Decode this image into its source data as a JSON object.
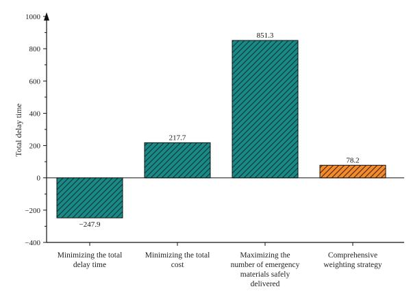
{
  "chart_data": {
    "type": "bar",
    "title": "",
    "xlabel": "",
    "ylabel": "Total delay time",
    "ylim": [
      -400,
      1000
    ],
    "yticks": [
      -400,
      -200,
      0,
      200,
      400,
      600,
      800,
      1000
    ],
    "ytick_labels": [
      "−400",
      "−200",
      "0",
      "200",
      "400",
      "600",
      "800",
      "1000"
    ],
    "grid": false,
    "categories": [
      [
        "Minimizing the total",
        "delay time"
      ],
      [
        "Minimizing the total",
        "cost"
      ],
      [
        "Maximizing the",
        "number of emergency",
        "materials safely",
        "delivered"
      ],
      [
        "Comprehensive",
        "weighting strategy"
      ]
    ],
    "values": [
      -247.9,
      217.7,
      851.3,
      78.2
    ],
    "value_labels": [
      "−247.9",
      "217.7",
      "851.3",
      "78.2"
    ],
    "colors": [
      "#1a8a86",
      "#1a8a86",
      "#1a8a86",
      "#f28a2e"
    ],
    "hatch": "diagonal"
  }
}
